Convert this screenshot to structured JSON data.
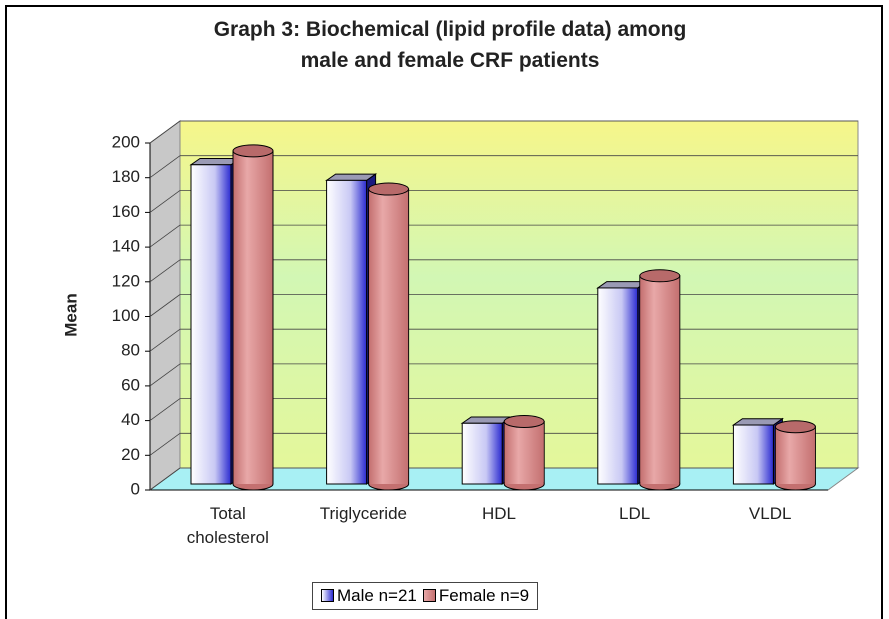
{
  "chart_data": {
    "type": "bar3d",
    "title": "Graph 3: Biochemical (lipid profile data) among male and female CRF patients",
    "y_label": "Mean",
    "categories": [
      "Total cholesterol",
      "Triglyceride",
      "HDL",
      "LDL",
      "VLDL"
    ],
    "series": [
      {
        "name": "Male n=21",
        "color": "#2a2ad0",
        "values": [
          184,
          175,
          35,
          113,
          34
        ]
      },
      {
        "name": "Female n=9",
        "color": "#c47070",
        "values": [
          192,
          170,
          36,
          120,
          33
        ]
      }
    ],
    "ylim": [
      0,
      200
    ],
    "yticks": [
      0,
      20,
      40,
      60,
      80,
      100,
      120,
      140,
      160,
      180,
      200
    ],
    "grid": true,
    "legend": "bottom"
  }
}
